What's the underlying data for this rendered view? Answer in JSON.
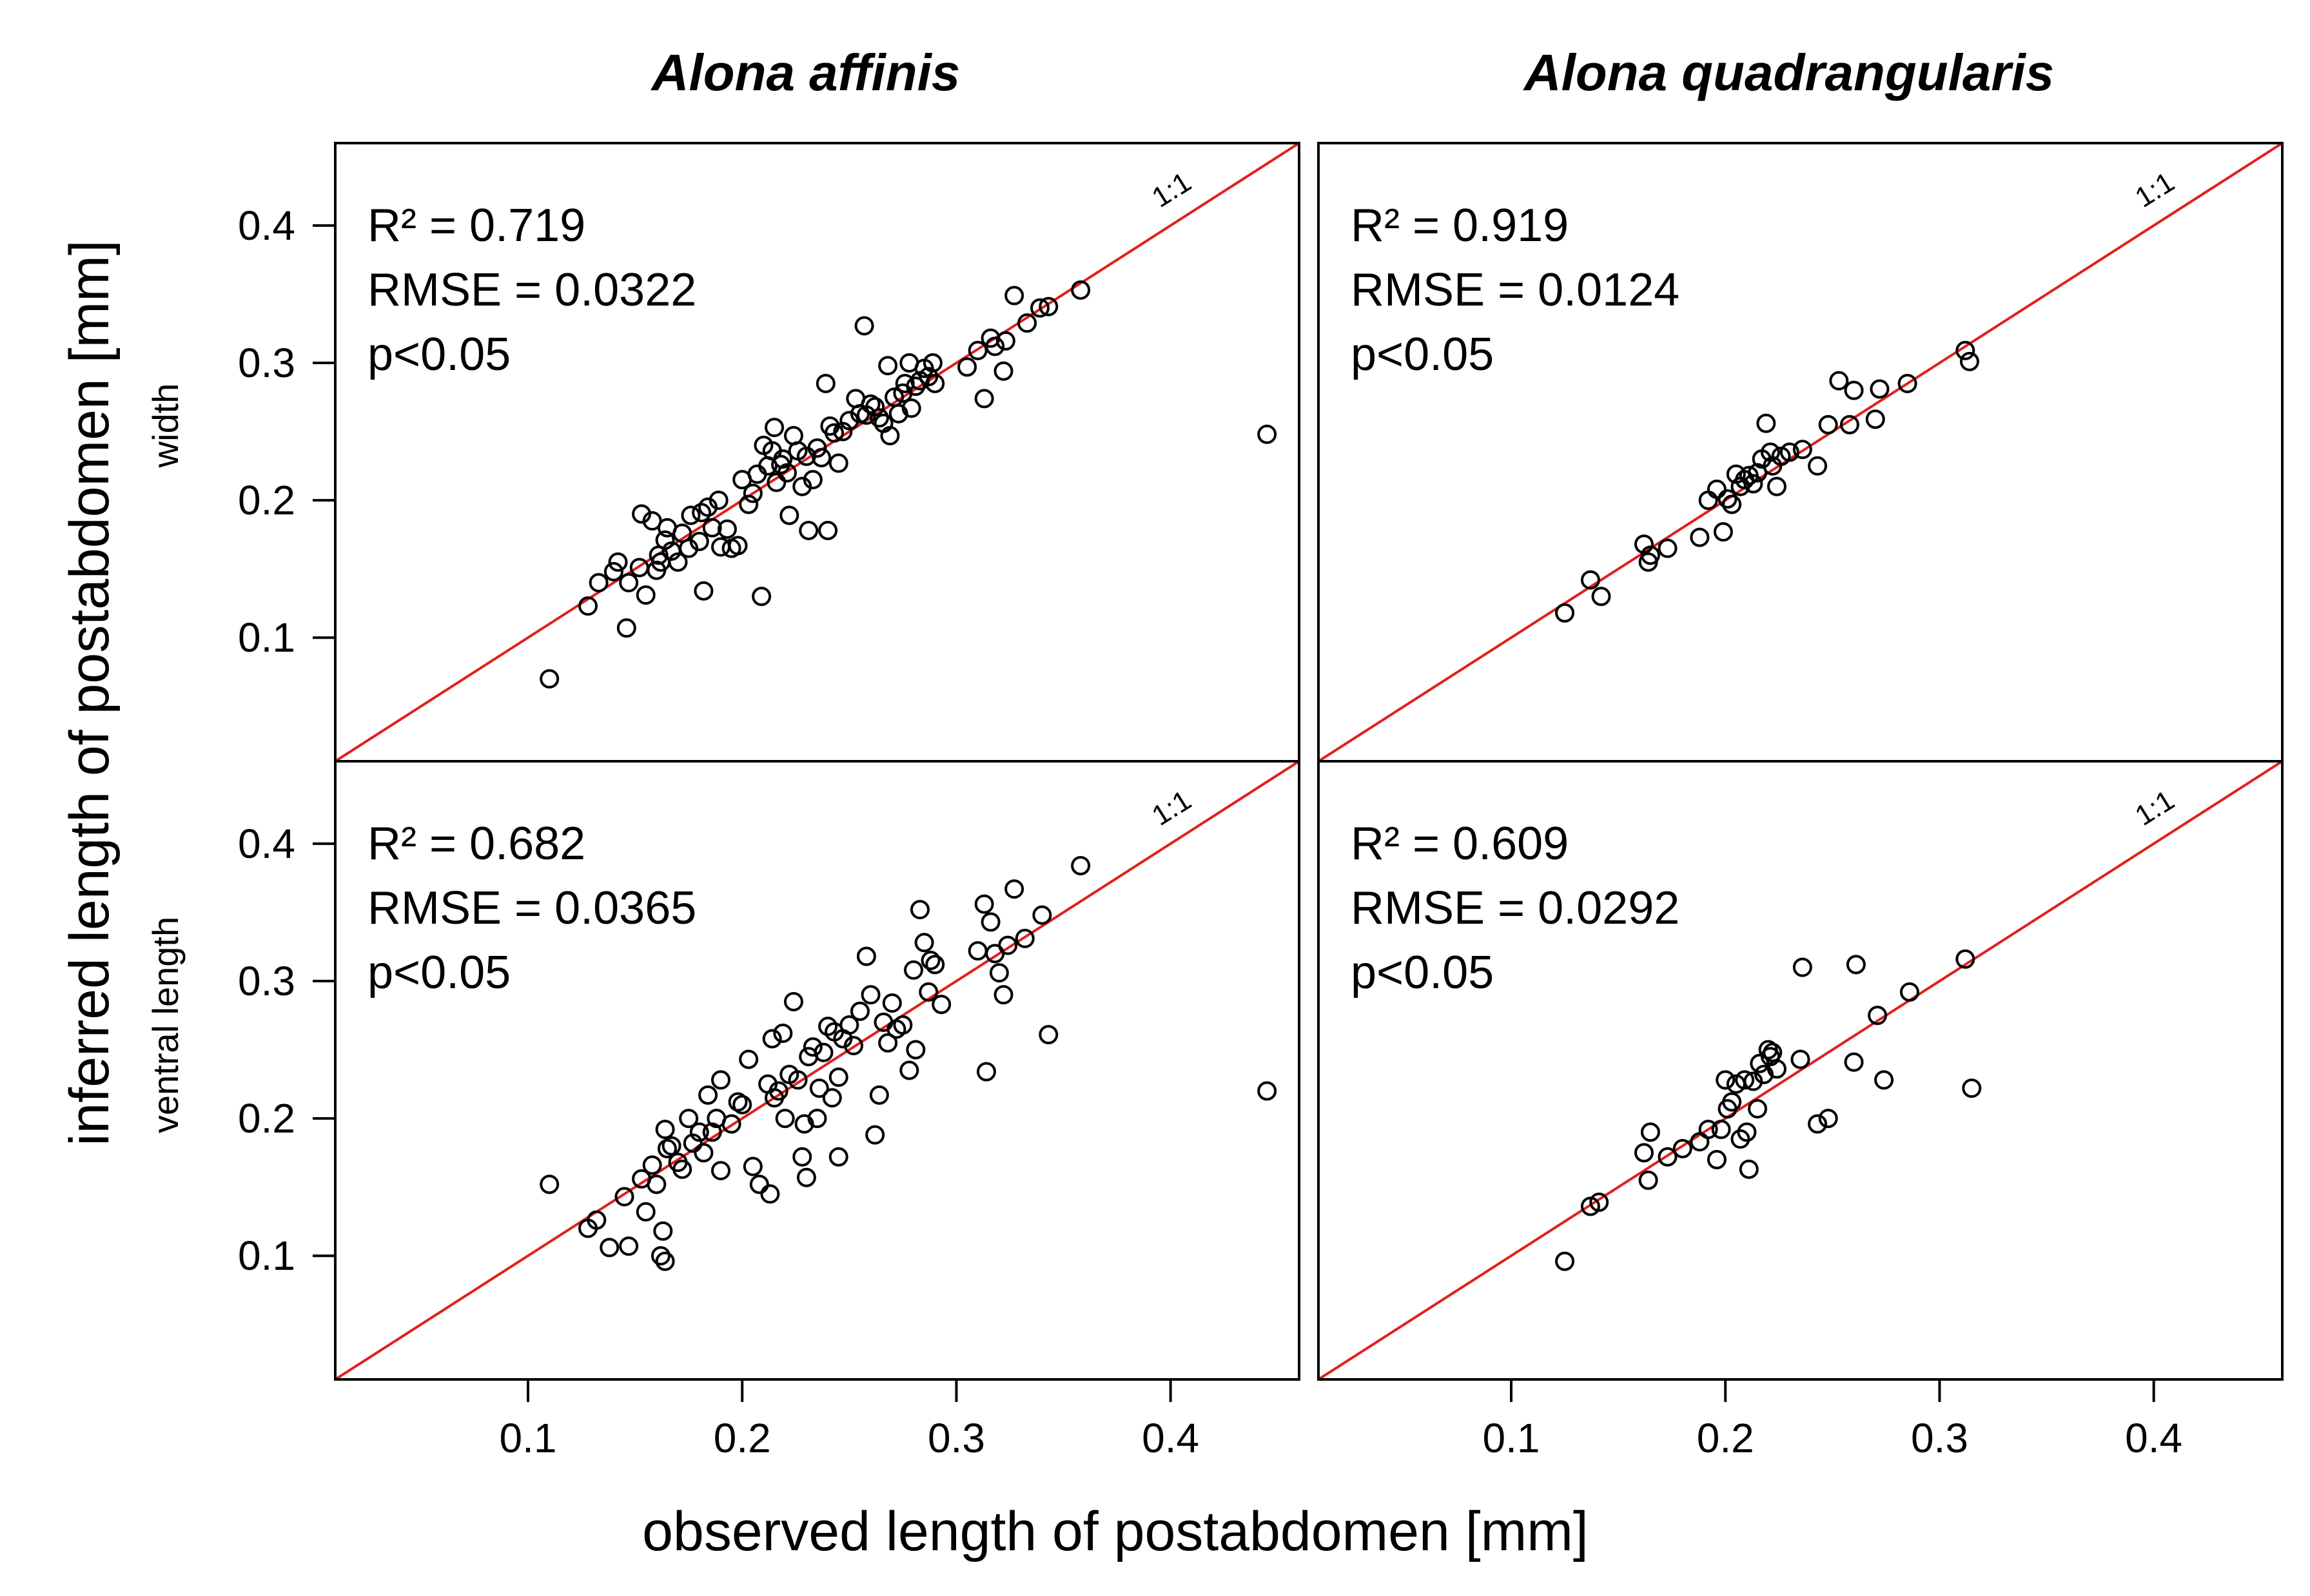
{
  "figure": {
    "columns": [
      "Alona affinis",
      "Alona quadrangularis"
    ],
    "rows": [
      "width",
      "ventral length"
    ],
    "ylabel": "inferred length of postabdomen [mm]",
    "xlabel": "observed length of postabdomen [mm]",
    "ref_label": "1:1",
    "colors": {
      "ref_line": "#e0201c",
      "points": "#000000"
    }
  },
  "chart_data": [
    {
      "type": "scatter",
      "panel": "affinis-width",
      "title": "Alona affinis",
      "row": "width",
      "xlim": [
        0.01,
        0.46
      ],
      "ylim": [
        0.01,
        0.46
      ],
      "xticks": [
        0.1,
        0.2,
        0.3,
        0.4
      ],
      "yticks": [
        0.1,
        0.2,
        0.3,
        0.4
      ],
      "tick_labels": [
        "0.1",
        "0.2",
        "0.3",
        "0.4"
      ],
      "reference_line": "1:1",
      "stats": {
        "r2": "R² = 0.719",
        "rmse": "RMSE = 0.0322",
        "p": "p<0.05"
      },
      "points": [
        [
          0.11,
          0.07
        ],
        [
          0.128,
          0.123
        ],
        [
          0.133,
          0.14
        ],
        [
          0.14,
          0.148
        ],
        [
          0.142,
          0.155
        ],
        [
          0.146,
          0.107
        ],
        [
          0.147,
          0.14
        ],
        [
          0.152,
          0.151
        ],
        [
          0.153,
          0.19
        ],
        [
          0.155,
          0.131
        ],
        [
          0.158,
          0.185
        ],
        [
          0.16,
          0.149
        ],
        [
          0.161,
          0.16
        ],
        [
          0.162,
          0.155
        ],
        [
          0.164,
          0.171
        ],
        [
          0.165,
          0.18
        ],
        [
          0.167,
          0.163
        ],
        [
          0.17,
          0.155
        ],
        [
          0.172,
          0.176
        ],
        [
          0.175,
          0.165
        ],
        [
          0.176,
          0.189
        ],
        [
          0.18,
          0.17
        ],
        [
          0.181,
          0.191
        ],
        [
          0.182,
          0.134
        ],
        [
          0.184,
          0.195
        ],
        [
          0.186,
          0.18
        ],
        [
          0.189,
          0.2
        ],
        [
          0.19,
          0.166
        ],
        [
          0.193,
          0.179
        ],
        [
          0.195,
          0.165
        ],
        [
          0.198,
          0.167
        ],
        [
          0.2,
          0.215
        ],
        [
          0.203,
          0.197
        ],
        [
          0.205,
          0.205
        ],
        [
          0.207,
          0.219
        ],
        [
          0.209,
          0.13
        ],
        [
          0.21,
          0.24
        ],
        [
          0.212,
          0.225
        ],
        [
          0.214,
          0.236
        ],
        [
          0.215,
          0.253
        ],
        [
          0.216,
          0.213
        ],
        [
          0.218,
          0.226
        ],
        [
          0.219,
          0.23
        ],
        [
          0.221,
          0.22
        ],
        [
          0.222,
          0.189
        ],
        [
          0.224,
          0.247
        ],
        [
          0.226,
          0.236
        ],
        [
          0.228,
          0.21
        ],
        [
          0.23,
          0.232
        ],
        [
          0.231,
          0.178
        ],
        [
          0.233,
          0.215
        ],
        [
          0.235,
          0.238
        ],
        [
          0.237,
          0.231
        ],
        [
          0.239,
          0.285
        ],
        [
          0.24,
          0.178
        ],
        [
          0.241,
          0.254
        ],
        [
          0.243,
          0.249
        ],
        [
          0.245,
          0.227
        ],
        [
          0.247,
          0.25
        ],
        [
          0.25,
          0.258
        ],
        [
          0.253,
          0.274
        ],
        [
          0.255,
          0.263
        ],
        [
          0.257,
          0.327
        ],
        [
          0.258,
          0.262
        ],
        [
          0.26,
          0.27
        ],
        [
          0.262,
          0.268
        ],
        [
          0.264,
          0.26
        ],
        [
          0.266,
          0.256
        ],
        [
          0.268,
          0.298
        ],
        [
          0.269,
          0.247
        ],
        [
          0.271,
          0.275
        ],
        [
          0.273,
          0.263
        ],
        [
          0.275,
          0.278
        ],
        [
          0.276,
          0.285
        ],
        [
          0.278,
          0.3
        ],
        [
          0.279,
          0.267
        ],
        [
          0.281,
          0.283
        ],
        [
          0.283,
          0.287
        ],
        [
          0.285,
          0.296
        ],
        [
          0.287,
          0.29
        ],
        [
          0.289,
          0.3
        ],
        [
          0.29,
          0.285
        ],
        [
          0.305,
          0.297
        ],
        [
          0.31,
          0.309
        ],
        [
          0.313,
          0.274
        ],
        [
          0.316,
          0.318
        ],
        [
          0.318,
          0.312
        ],
        [
          0.322,
          0.294
        ],
        [
          0.323,
          0.316
        ],
        [
          0.327,
          0.349
        ],
        [
          0.333,
          0.329
        ],
        [
          0.339,
          0.34
        ],
        [
          0.343,
          0.341
        ],
        [
          0.358,
          0.353
        ],
        [
          0.445,
          0.248
        ]
      ]
    },
    {
      "type": "scatter",
      "panel": "quadrangularis-width",
      "title": "Alona quadrangularis",
      "row": "width",
      "xlim": [
        0.01,
        0.46
      ],
      "ylim": [
        0.01,
        0.46
      ],
      "xticks": [
        0.1,
        0.2,
        0.3,
        0.4
      ],
      "yticks": [
        0.1,
        0.2,
        0.3,
        0.4
      ],
      "tick_labels": [
        "0.1",
        "0.2",
        "0.3",
        "0.4"
      ],
      "reference_line": "1:1",
      "stats": {
        "r2": "R² = 0.919",
        "rmse": "RMSE = 0.0124",
        "p": "p<0.05"
      },
      "points": [
        [
          0.125,
          0.118
        ],
        [
          0.137,
          0.142
        ],
        [
          0.142,
          0.13
        ],
        [
          0.162,
          0.168
        ],
        [
          0.164,
          0.155
        ],
        [
          0.165,
          0.16
        ],
        [
          0.173,
          0.165
        ],
        [
          0.188,
          0.173
        ],
        [
          0.192,
          0.2
        ],
        [
          0.196,
          0.208
        ],
        [
          0.199,
          0.177
        ],
        [
          0.201,
          0.201
        ],
        [
          0.203,
          0.197
        ],
        [
          0.205,
          0.219
        ],
        [
          0.207,
          0.21
        ],
        [
          0.209,
          0.215
        ],
        [
          0.211,
          0.218
        ],
        [
          0.213,
          0.212
        ],
        [
          0.215,
          0.22
        ],
        [
          0.217,
          0.23
        ],
        [
          0.219,
          0.256
        ],
        [
          0.221,
          0.235
        ],
        [
          0.222,
          0.225
        ],
        [
          0.224,
          0.21
        ],
        [
          0.226,
          0.232
        ],
        [
          0.23,
          0.235
        ],
        [
          0.236,
          0.237
        ],
        [
          0.243,
          0.225
        ],
        [
          0.248,
          0.255
        ],
        [
          0.253,
          0.287
        ],
        [
          0.258,
          0.255
        ],
        [
          0.26,
          0.28
        ],
        [
          0.27,
          0.259
        ],
        [
          0.272,
          0.281
        ],
        [
          0.285,
          0.285
        ],
        [
          0.312,
          0.309
        ],
        [
          0.314,
          0.301
        ]
      ]
    },
    {
      "type": "scatter",
      "panel": "affinis-ventral-length",
      "title": "Alona affinis",
      "row": "ventral length",
      "xlim": [
        0.01,
        0.46
      ],
      "ylim": [
        0.01,
        0.46
      ],
      "xticks": [
        0.1,
        0.2,
        0.3,
        0.4
      ],
      "yticks": [
        0.1,
        0.2,
        0.3,
        0.4
      ],
      "tick_labels": [
        "0.1",
        "0.2",
        "0.3",
        "0.4"
      ],
      "reference_line": "1:1",
      "stats": {
        "r2": "R² = 0.682",
        "rmse": "RMSE = 0.0365",
        "p": "p<0.05"
      },
      "points": [
        [
          0.11,
          0.152
        ],
        [
          0.128,
          0.12
        ],
        [
          0.132,
          0.126
        ],
        [
          0.138,
          0.106
        ],
        [
          0.145,
          0.143
        ],
        [
          0.147,
          0.107
        ],
        [
          0.153,
          0.156
        ],
        [
          0.155,
          0.132
        ],
        [
          0.158,
          0.166
        ],
        [
          0.16,
          0.152
        ],
        [
          0.162,
          0.1
        ],
        [
          0.163,
          0.118
        ],
        [
          0.164,
          0.096
        ],
        [
          0.164,
          0.192
        ],
        [
          0.165,
          0.178
        ],
        [
          0.167,
          0.18
        ],
        [
          0.17,
          0.168
        ],
        [
          0.172,
          0.163
        ],
        [
          0.175,
          0.2
        ],
        [
          0.177,
          0.182
        ],
        [
          0.18,
          0.19
        ],
        [
          0.182,
          0.175
        ],
        [
          0.184,
          0.217
        ],
        [
          0.186,
          0.19
        ],
        [
          0.188,
          0.2
        ],
        [
          0.19,
          0.162
        ],
        [
          0.19,
          0.228
        ],
        [
          0.195,
          0.196
        ],
        [
          0.198,
          0.212
        ],
        [
          0.2,
          0.21
        ],
        [
          0.203,
          0.243
        ],
        [
          0.205,
          0.165
        ],
        [
          0.208,
          0.152
        ],
        [
          0.212,
          0.225
        ],
        [
          0.213,
          0.145
        ],
        [
          0.214,
          0.258
        ],
        [
          0.215,
          0.215
        ],
        [
          0.217,
          0.22
        ],
        [
          0.219,
          0.262
        ],
        [
          0.22,
          0.2
        ],
        [
          0.222,
          0.232
        ],
        [
          0.224,
          0.285
        ],
        [
          0.226,
          0.228
        ],
        [
          0.228,
          0.172
        ],
        [
          0.229,
          0.196
        ],
        [
          0.23,
          0.157
        ],
        [
          0.231,
          0.245
        ],
        [
          0.233,
          0.252
        ],
        [
          0.235,
          0.2
        ],
        [
          0.236,
          0.222
        ],
        [
          0.238,
          0.248
        ],
        [
          0.24,
          0.267
        ],
        [
          0.242,
          0.215
        ],
        [
          0.243,
          0.263
        ],
        [
          0.245,
          0.172
        ],
        [
          0.245,
          0.23
        ],
        [
          0.247,
          0.258
        ],
        [
          0.25,
          0.268
        ],
        [
          0.252,
          0.253
        ],
        [
          0.255,
          0.278
        ],
        [
          0.258,
          0.318
        ],
        [
          0.26,
          0.29
        ],
        [
          0.262,
          0.188
        ],
        [
          0.264,
          0.217
        ],
        [
          0.266,
          0.27
        ],
        [
          0.268,
          0.255
        ],
        [
          0.27,
          0.284
        ],
        [
          0.272,
          0.265
        ],
        [
          0.275,
          0.268
        ],
        [
          0.278,
          0.235
        ],
        [
          0.28,
          0.308
        ],
        [
          0.281,
          0.25
        ],
        [
          0.283,
          0.352
        ],
        [
          0.285,
          0.328
        ],
        [
          0.287,
          0.292
        ],
        [
          0.288,
          0.315
        ],
        [
          0.29,
          0.312
        ],
        [
          0.293,
          0.283
        ],
        [
          0.31,
          0.322
        ],
        [
          0.313,
          0.356
        ],
        [
          0.314,
          0.234
        ],
        [
          0.316,
          0.343
        ],
        [
          0.318,
          0.32
        ],
        [
          0.32,
          0.306
        ],
        [
          0.322,
          0.29
        ],
        [
          0.324,
          0.326
        ],
        [
          0.327,
          0.367
        ],
        [
          0.332,
          0.331
        ],
        [
          0.34,
          0.348
        ],
        [
          0.343,
          0.261
        ],
        [
          0.358,
          0.384
        ],
        [
          0.445,
          0.22
        ]
      ]
    },
    {
      "type": "scatter",
      "panel": "quadrangularis-ventral-length",
      "title": "Alona quadrangularis",
      "row": "ventral length",
      "xlim": [
        0.01,
        0.46
      ],
      "ylim": [
        0.01,
        0.46
      ],
      "xticks": [
        0.1,
        0.2,
        0.3,
        0.4
      ],
      "yticks": [
        0.1,
        0.2,
        0.3,
        0.4
      ],
      "tick_labels": [
        "0.1",
        "0.2",
        "0.3",
        "0.4"
      ],
      "reference_line": "1:1",
      "stats": {
        "r2": "R² = 0.609",
        "rmse": "RMSE = 0.0292",
        "p": "p<0.05"
      },
      "points": [
        [
          0.125,
          0.096
        ],
        [
          0.137,
          0.136
        ],
        [
          0.141,
          0.139
        ],
        [
          0.162,
          0.175
        ],
        [
          0.164,
          0.155
        ],
        [
          0.165,
          0.19
        ],
        [
          0.173,
          0.172
        ],
        [
          0.18,
          0.178
        ],
        [
          0.188,
          0.183
        ],
        [
          0.192,
          0.192
        ],
        [
          0.196,
          0.17
        ],
        [
          0.198,
          0.192
        ],
        [
          0.2,
          0.228
        ],
        [
          0.201,
          0.207
        ],
        [
          0.203,
          0.212
        ],
        [
          0.205,
          0.225
        ],
        [
          0.207,
          0.185
        ],
        [
          0.209,
          0.228
        ],
        [
          0.21,
          0.19
        ],
        [
          0.211,
          0.163
        ],
        [
          0.213,
          0.227
        ],
        [
          0.215,
          0.207
        ],
        [
          0.216,
          0.24
        ],
        [
          0.218,
          0.232
        ],
        [
          0.22,
          0.25
        ],
        [
          0.221,
          0.245
        ],
        [
          0.222,
          0.248
        ],
        [
          0.224,
          0.236
        ],
        [
          0.235,
          0.243
        ],
        [
          0.236,
          0.31
        ],
        [
          0.243,
          0.196
        ],
        [
          0.248,
          0.2
        ],
        [
          0.26,
          0.241
        ],
        [
          0.261,
          0.312
        ],
        [
          0.271,
          0.275
        ],
        [
          0.274,
          0.228
        ],
        [
          0.286,
          0.292
        ],
        [
          0.312,
          0.316
        ],
        [
          0.315,
          0.222
        ]
      ]
    }
  ]
}
